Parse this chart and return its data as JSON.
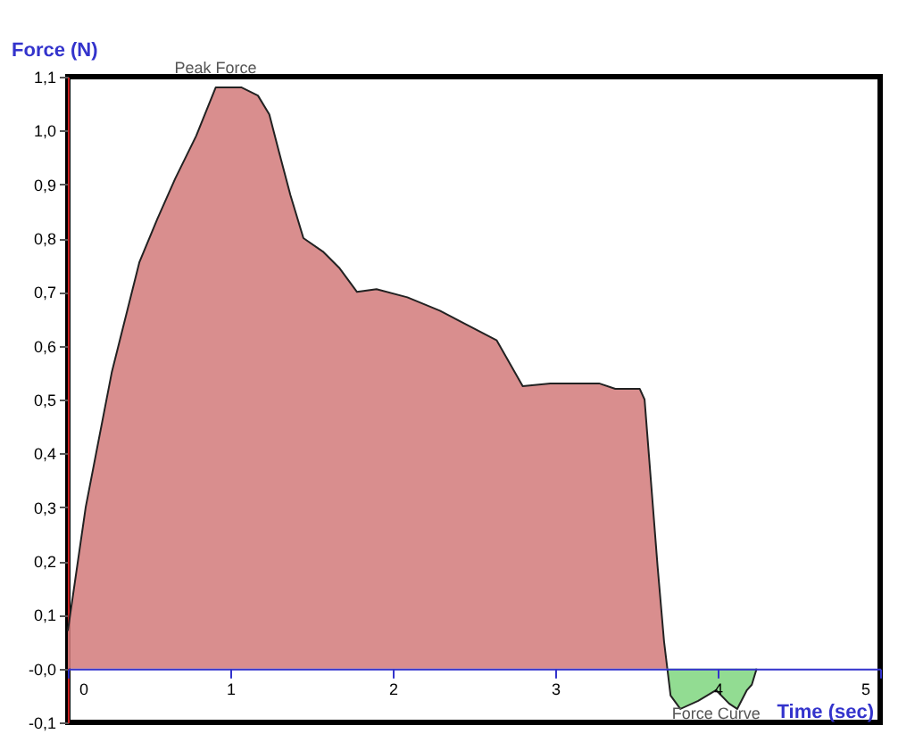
{
  "chart_data": {
    "type": "area",
    "xlabel": "Time (sec)",
    "ylabel": "Force (N)",
    "xlim": [
      0,
      5
    ],
    "ylim": [
      -0.1,
      1.1
    ],
    "xticks": [
      0,
      1,
      2,
      3,
      4,
      5
    ],
    "yticks": [
      {
        "value": -0.1,
        "label": "-0,1"
      },
      {
        "value": 0,
        "label": "-0,0"
      },
      {
        "value": 0.1,
        "label": "0,1"
      },
      {
        "value": 0.2,
        "label": "0,2"
      },
      {
        "value": 0.3,
        "label": "0,3"
      },
      {
        "value": 0.4,
        "label": "0,4"
      },
      {
        "value": 0.5,
        "label": "0,5"
      },
      {
        "value": 0.6,
        "label": "0,6"
      },
      {
        "value": 0.7,
        "label": "0,7"
      },
      {
        "value": 0.8,
        "label": "0,8"
      },
      {
        "value": 0.9,
        "label": "0,9"
      },
      {
        "value": 1.0,
        "label": "1,0"
      },
      {
        "value": 1.1,
        "label": "1,1"
      }
    ],
    "series": [
      {
        "color": "#d27a7a",
        "x": [
          0,
          0.11,
          0.27,
          0.44,
          0.55,
          0.66,
          0.79,
          0.91,
          1.07,
          1.17,
          1.24,
          1.3,
          1.37,
          1.45,
          1.57,
          1.67,
          1.78,
          1.9,
          2.09,
          2.29,
          2.64,
          2.8,
          2.97,
          3.19,
          3.27,
          3.37,
          3.52,
          3.55,
          3.59,
          3.63,
          3.67,
          3.69
        ],
        "values": [
          0.07,
          0.3,
          0.55,
          0.755,
          0.835,
          0.91,
          0.99,
          1.08,
          1.08,
          1.065,
          1.03,
          0.96,
          0.88,
          0.8,
          0.775,
          0.745,
          0.7,
          0.705,
          0.69,
          0.665,
          0.61,
          0.525,
          0.53,
          0.53,
          0.53,
          0.52,
          0.52,
          0.5,
          0.345,
          0.19,
          0.05,
          0
        ]
      },
      {
        "color": "#7fd67f",
        "x": [
          3.69,
          3.71,
          3.77,
          3.88,
          3.99,
          4.07,
          4.12,
          4.18,
          4.21,
          4.24
        ],
        "values": [
          0,
          -0.05,
          -0.075,
          -0.06,
          -0.04,
          -0.065,
          -0.075,
          -0.04,
          -0.03,
          0
        ]
      }
    ],
    "annotations": [
      {
        "text": "Peak Force",
        "x": 0.91,
        "y": 1.08
      },
      {
        "text": "Force Curve",
        "x": 3.99,
        "y": -0.04
      }
    ]
  }
}
